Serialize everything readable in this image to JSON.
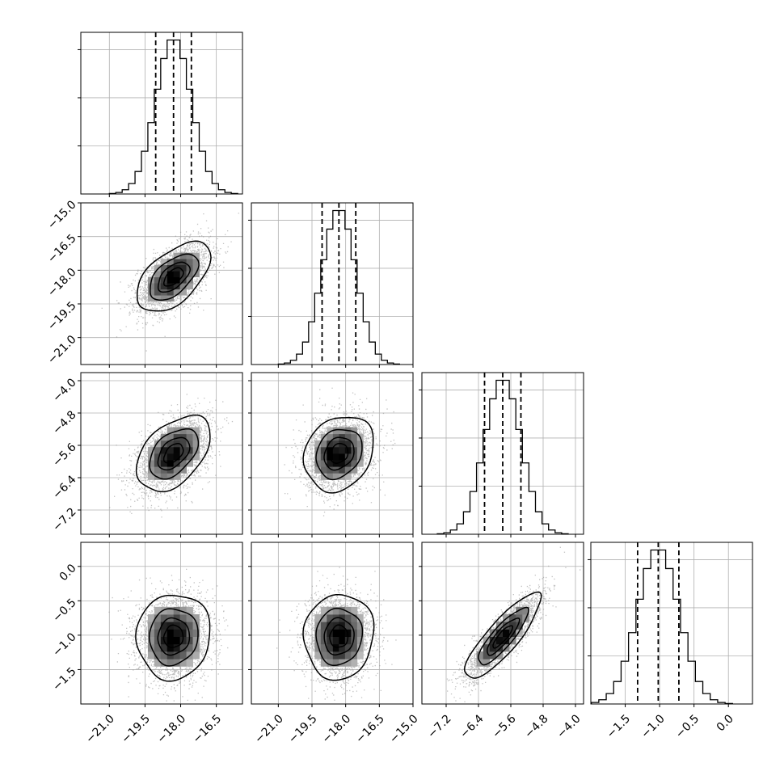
{
  "chart_data": {
    "type": "corner",
    "title": "",
    "grid": true,
    "variables": [
      {
        "label": "",
        "range": [
          -22.2,
          -15.4
        ],
        "ticks": [
          -21.0,
          -19.5,
          -18.0,
          -16.5
        ],
        "tick_labels": [
          "−21.0",
          "−19.5",
          "−18.0",
          "−16.5"
        ],
        "mean": -18.3,
        "sd": 0.75
      },
      {
        "label": "",
        "range": [
          -22.2,
          -15.0
        ],
        "ticks": [
          -21.0,
          -19.5,
          -18.0,
          -16.5,
          -15.0
        ],
        "tick_labels": [
          "−21.0",
          "−19.5",
          "−18.0",
          "−16.5",
          "−15.0"
        ],
        "mean": -18.3,
        "sd": 0.75
      },
      {
        "label": "",
        "range": [
          -7.8,
          -3.8
        ],
        "ticks": [
          -7.2,
          -6.4,
          -5.6,
          -4.8,
          -4.0
        ],
        "tick_labels": [
          "−7.2",
          "−6.4",
          "−5.6",
          "−4.8",
          "−4.0"
        ],
        "mean": -5.8,
        "sd": 0.45
      },
      {
        "label": "",
        "range": [
          -2.0,
          0.35
        ],
        "ticks": [
          -1.5,
          -1.0,
          -0.5,
          0.0
        ],
        "tick_labels": [
          "−1.5",
          "−1.0",
          "−0.5",
          "0.0"
        ],
        "mean": -1.02,
        "sd": 0.3
      }
    ],
    "y_tick_panels": [
      {
        "row": 1,
        "var": 1,
        "ticks": [
          -21.0,
          -19.5,
          -18.0,
          -16.5,
          -15.0
        ],
        "tick_labels": [
          "−21.0",
          "−19.5",
          "−18.0",
          "−16.5",
          "−15.0"
        ]
      },
      {
        "row": 2,
        "var": 2,
        "ticks": [
          -7.2,
          -6.4,
          -5.6,
          -4.8,
          -4.0
        ],
        "tick_labels": [
          "−7.2",
          "−6.4",
          "−5.6",
          "−4.8",
          "−4.0"
        ]
      },
      {
        "row": 3,
        "var": 3,
        "ticks": [
          -1.5,
          -1.0,
          -0.5,
          0.0
        ],
        "tick_labels": [
          "−1.5",
          "−1.0",
          "−0.5",
          "0.0"
        ]
      }
    ],
    "quantiles": [
      0.16,
      0.5,
      0.84
    ],
    "quantile_values": [
      [
        -19.05,
        -18.3,
        -17.55
      ],
      [
        -19.05,
        -18.3,
        -17.55
      ],
      [
        -6.25,
        -5.8,
        -5.35
      ],
      [
        -1.32,
        -1.02,
        -0.72
      ]
    ],
    "correlations": {
      "1_0": 0.55,
      "2_0": 0.45,
      "2_1": 0.2,
      "3_0": 0.05,
      "3_1": 0.05,
      "3_2": 0.85
    },
    "histogram_bins": 20,
    "n_samples": 10000,
    "contour_levels_sigma": [
      0.5,
      1.0,
      1.5,
      2.0
    ],
    "colors": {
      "hist": "#000000",
      "scatter": "#9a9a9a",
      "grid": "#b0b0b0",
      "density_dark": "#000000",
      "density_light": "#ffffff"
    }
  }
}
